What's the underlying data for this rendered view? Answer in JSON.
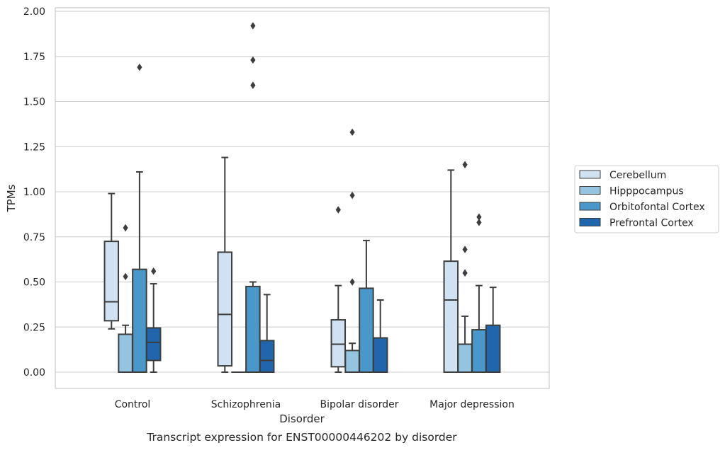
{
  "chart_data": {
    "type": "boxplot",
    "caption": "Transcript expression for ENST00000446202 by disorder",
    "xlabel": "Disorder",
    "ylabel": "TPMs",
    "ylim": [
      -0.09,
      2.02
    ],
    "yticks": [
      "0.00",
      "0.25",
      "0.50",
      "0.75",
      "1.00",
      "1.25",
      "1.50",
      "1.75",
      "2.00"
    ],
    "grid": "horizontal",
    "legend_position": "right",
    "categories": [
      "Control",
      "Schizophrenia",
      "Bipolar disorder",
      "Major depression"
    ],
    "series": [
      {
        "name": "Cerebellum",
        "color": "#d0e1f2",
        "boxes": [
          {
            "whislo": 0.24,
            "q1": 0.285,
            "med": 0.39,
            "q3": 0.725,
            "whishi": 0.99,
            "fliers": []
          },
          {
            "whislo": 0.0,
            "q1": 0.035,
            "med": 0.32,
            "q3": 0.665,
            "whishi": 1.19,
            "fliers": []
          },
          {
            "whislo": 0.0,
            "q1": 0.03,
            "med": 0.155,
            "q3": 0.29,
            "whishi": 0.48,
            "fliers": [
              0.9
            ]
          },
          {
            "whislo": 0.0,
            "q1": 0.0,
            "med": 0.4,
            "q3": 0.615,
            "whishi": 1.12,
            "fliers": []
          }
        ]
      },
      {
        "name": "Hipppocampus",
        "color": "#94c4df",
        "boxes": [
          {
            "whislo": 0.0,
            "q1": 0.0,
            "med": 0.0,
            "q3": 0.21,
            "whishi": 0.26,
            "fliers": [
              0.53,
              0.8
            ]
          },
          {
            "whislo": 0.0,
            "q1": 0.0,
            "med": 0.0,
            "q3": 0.0,
            "whishi": 0.0,
            "fliers": []
          },
          {
            "whislo": 0.0,
            "q1": 0.0,
            "med": 0.0,
            "q3": 0.12,
            "whishi": 0.16,
            "fliers": [
              0.5,
              0.98,
              1.33
            ]
          },
          {
            "whislo": 0.0,
            "q1": 0.0,
            "med": 0.0,
            "q3": 0.155,
            "whishi": 0.31,
            "fliers": [
              0.55,
              0.68,
              1.15
            ]
          }
        ]
      },
      {
        "name": "Orbitofontal Cortex",
        "color": "#4a98c9",
        "boxes": [
          {
            "whislo": 0.0,
            "q1": 0.0,
            "med": 0.0,
            "q3": 0.57,
            "whishi": 1.11,
            "fliers": [
              1.69
            ]
          },
          {
            "whislo": 0.0,
            "q1": 0.0,
            "med": 0.0,
            "q3": 0.475,
            "whishi": 0.5,
            "fliers": [
              1.59,
              1.73,
              1.92
            ]
          },
          {
            "whislo": 0.0,
            "q1": 0.0,
            "med": 0.0,
            "q3": 0.465,
            "whishi": 0.73,
            "fliers": []
          },
          {
            "whislo": 0.0,
            "q1": 0.0,
            "med": 0.0,
            "q3": 0.235,
            "whishi": 0.48,
            "fliers": [
              0.83,
              0.86
            ]
          }
        ]
      },
      {
        "name": "Prefrontal Cortex",
        "color": "#2166ac",
        "boxes": [
          {
            "whislo": 0.0,
            "q1": 0.065,
            "med": 0.165,
            "q3": 0.245,
            "whishi": 0.49,
            "fliers": [
              0.56
            ]
          },
          {
            "whislo": 0.0,
            "q1": 0.0,
            "med": 0.065,
            "q3": 0.175,
            "whishi": 0.43,
            "fliers": []
          },
          {
            "whislo": 0.0,
            "q1": 0.0,
            "med": 0.0,
            "q3": 0.19,
            "whishi": 0.4,
            "fliers": []
          },
          {
            "whislo": 0.0,
            "q1": 0.0,
            "med": 0.0,
            "q3": 0.26,
            "whishi": 0.47,
            "fliers": []
          }
        ]
      }
    ]
  }
}
